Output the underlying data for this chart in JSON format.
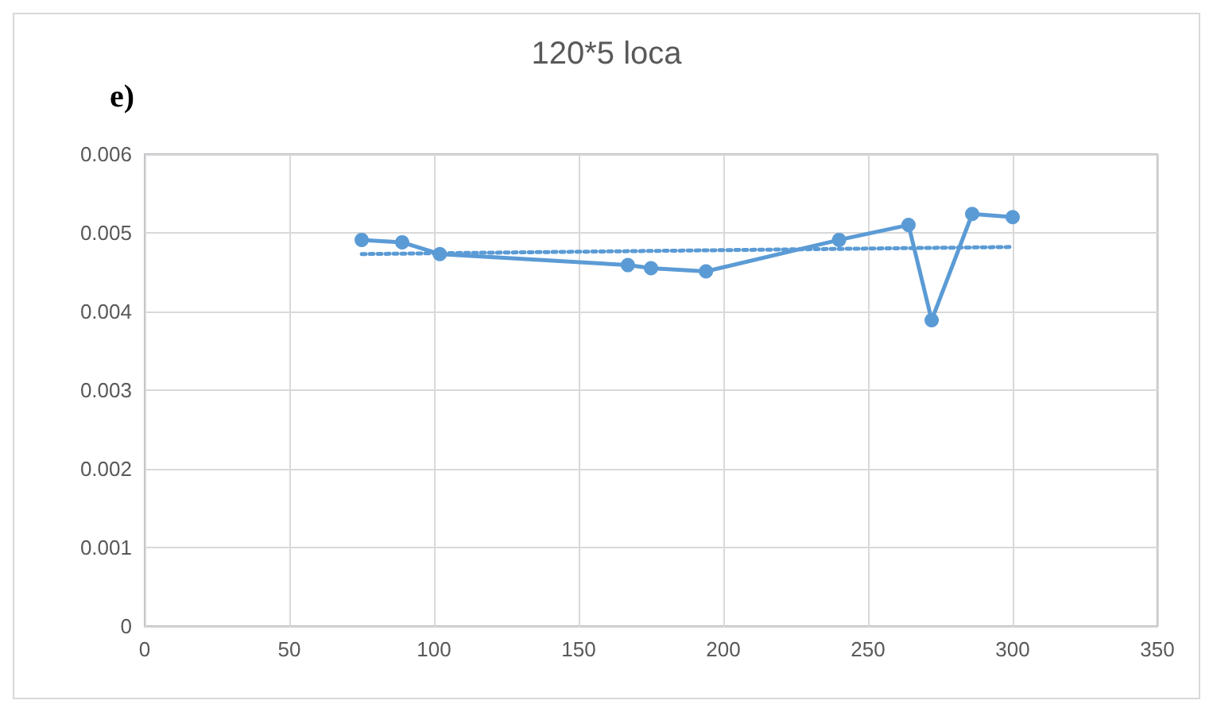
{
  "chart_data": {
    "type": "line",
    "title": "120*5 loca",
    "annotations": [
      "e)"
    ],
    "series": [
      {
        "color": "#5b9bd5",
        "marker": "circle",
        "line_style": "solid",
        "x": [
          75,
          89,
          102,
          167,
          175,
          194,
          240,
          264,
          272,
          286,
          300
        ],
        "values": [
          0.00491,
          0.00488,
          0.00473,
          0.00459,
          0.00455,
          0.00451,
          0.00491,
          0.0051,
          0.00389,
          0.00524,
          0.0052
        ]
      },
      {
        "color": "#5b9bd5",
        "marker": "none",
        "line_style": "dotted",
        "x": [
          75,
          300
        ],
        "values": [
          0.00473,
          0.00482
        ]
      }
    ],
    "xlim": [
      0,
      350
    ],
    "xticks": [
      0,
      50,
      100,
      150,
      200,
      250,
      300,
      350
    ],
    "ylim": [
      0,
      0.006
    ],
    "yticks": [
      0,
      0.001,
      0.002,
      0.003,
      0.004,
      0.005,
      0.006
    ],
    "grid": true
  }
}
